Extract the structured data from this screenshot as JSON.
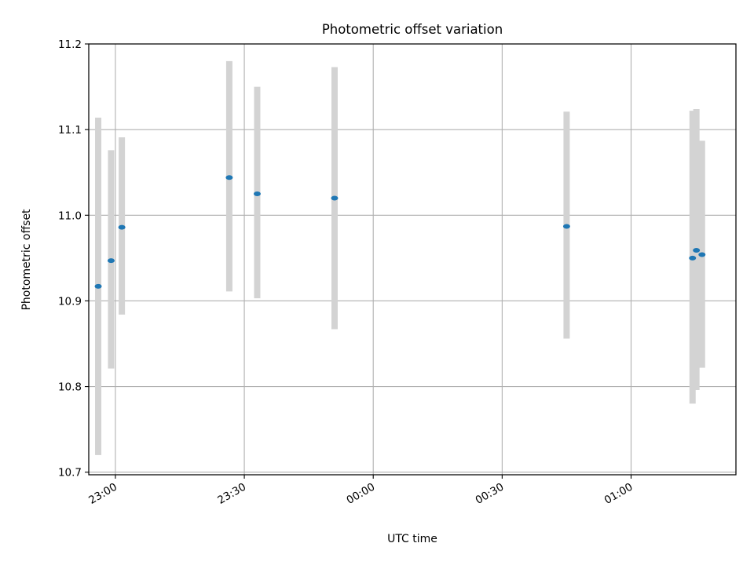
{
  "chart_data": {
    "type": "scatter",
    "title": "Photometric offset variation",
    "xlabel": "UTC time",
    "ylabel": "Photometric offset",
    "x_ticks": [
      "23:00",
      "23:30",
      "00:00",
      "00:30",
      "01:00"
    ],
    "y_ticks": [
      "10.7",
      "10.8",
      "10.9",
      "11.0",
      "11.1",
      "11.2"
    ],
    "xlim": [
      "22:53.8",
      "01:24.4"
    ],
    "ylim": [
      10.697,
      11.2
    ],
    "grid": true,
    "points": [
      {
        "x": "22:56.0",
        "y": 10.917,
        "ylow": 10.72,
        "yhigh": 11.114
      },
      {
        "x": "22:59.0",
        "y": 10.947,
        "ylow": 10.821,
        "yhigh": 11.076
      },
      {
        "x": "23:01.5",
        "y": 10.986,
        "ylow": 10.884,
        "yhigh": 11.091
      },
      {
        "x": "23:26.5",
        "y": 11.044,
        "ylow": 10.911,
        "yhigh": 11.18
      },
      {
        "x": "23:33.0",
        "y": 11.025,
        "ylow": 10.903,
        "yhigh": 11.15
      },
      {
        "x": "23:51.0",
        "y": 11.02,
        "ylow": 10.867,
        "yhigh": 11.173
      },
      {
        "x": "00:45.0",
        "y": 10.987,
        "ylow": 10.856,
        "yhigh": 11.121
      },
      {
        "x": "01:14.3",
        "y": 10.95,
        "ylow": 10.78,
        "yhigh": 11.122
      },
      {
        "x": "01:15.2",
        "y": 10.959,
        "ylow": 10.796,
        "yhigh": 11.124
      },
      {
        "x": "01:16.5",
        "y": 10.954,
        "ylow": 10.822,
        "yhigh": 11.087
      }
    ],
    "colors": {
      "marker": "#1f77b4",
      "errorbar": "#d3d3d3",
      "grid": "#b0b0b0",
      "axes": "#000000"
    }
  }
}
